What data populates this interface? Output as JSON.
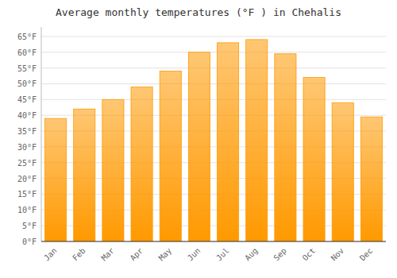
{
  "chart_data": {
    "type": "bar",
    "title": "Average monthly temperatures (°F ) in Chehalis",
    "categories": [
      "Jan",
      "Feb",
      "Mar",
      "Apr",
      "May",
      "Jun",
      "Jul",
      "Aug",
      "Sep",
      "Oct",
      "Nov",
      "Dec"
    ],
    "values": [
      39,
      42,
      45,
      49,
      54,
      60,
      63,
      64,
      59.5,
      52,
      44,
      39.5
    ],
    "color": "#FF9900",
    "ylim": [
      0,
      68
    ],
    "yticks": [
      {
        "value": 0,
        "label": "0°F"
      },
      {
        "value": 5,
        "label": "5°F"
      },
      {
        "value": 10,
        "label": "10°F"
      },
      {
        "value": 15,
        "label": "15°F"
      },
      {
        "value": 20,
        "label": "20°F"
      },
      {
        "value": 25,
        "label": "25°F"
      },
      {
        "value": 30,
        "label": "30°F"
      },
      {
        "value": 35,
        "label": "35°F"
      },
      {
        "value": 40,
        "label": "40°F"
      },
      {
        "value": 45,
        "label": "45°F"
      },
      {
        "value": 50,
        "label": "50°F"
      },
      {
        "value": 55,
        "label": "55°F"
      },
      {
        "value": 60,
        "label": "60°F"
      },
      {
        "value": 65,
        "label": "65°F"
      }
    ],
    "grid": true
  }
}
